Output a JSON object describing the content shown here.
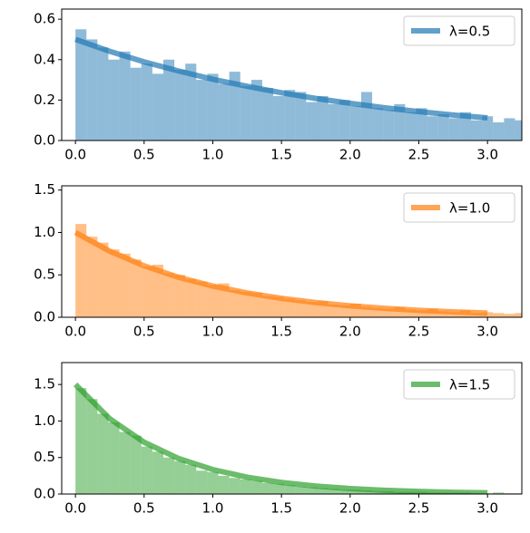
{
  "chart_data": [
    {
      "type": "histogram",
      "color": "#1f77b4",
      "bins": [
        0,
        0.08,
        0.16,
        0.24,
        0.32,
        0.4,
        0.48,
        0.56,
        0.64,
        0.72,
        0.8,
        0.88,
        0.96,
        1.04,
        1.12,
        1.2,
        1.28,
        1.36,
        1.44,
        1.52,
        1.6,
        1.68,
        1.76,
        1.84,
        1.92,
        2,
        2.08,
        2.16,
        2.24,
        2.32,
        2.4,
        2.48,
        2.56,
        2.64,
        2.72,
        2.8,
        2.88,
        2.96,
        3.04,
        3.12,
        3.2,
        3.28
      ],
      "values": [
        0.55,
        0.5,
        0.46,
        0.4,
        0.44,
        0.36,
        0.38,
        0.33,
        0.4,
        0.35,
        0.38,
        0.3,
        0.33,
        0.28,
        0.34,
        0.27,
        0.3,
        0.26,
        0.22,
        0.25,
        0.24,
        0.19,
        0.22,
        0.18,
        0.2,
        0.17,
        0.24,
        0.16,
        0.15,
        0.18,
        0.14,
        0.16,
        0.12,
        0.13,
        0.11,
        0.14,
        0.1,
        0.12,
        0.09,
        0.11,
        0.1
      ],
      "series": [
        {
          "name": "λ=0.5",
          "color": "#1f77b4",
          "x": [
            0,
            0.25,
            0.5,
            0.75,
            1,
            1.25,
            1.5,
            1.75,
            2,
            2.25,
            2.5,
            2.75,
            3
          ],
          "values": [
            0.5,
            0.441,
            0.389,
            0.344,
            0.303,
            0.268,
            0.236,
            0.208,
            0.184,
            0.162,
            0.143,
            0.126,
            0.112
          ]
        }
      ],
      "xlim": [
        -0.1,
        3.25
      ],
      "xticks": [
        {
          "value": 0,
          "label": "0.0"
        },
        {
          "value": 0.5,
          "label": "0.5"
        },
        {
          "value": 1,
          "label": "1.0"
        },
        {
          "value": 1.5,
          "label": "1.5"
        },
        {
          "value": 2,
          "label": "2.0"
        },
        {
          "value": 2.5,
          "label": "2.5"
        },
        {
          "value": 3,
          "label": "3.0"
        }
      ],
      "ylim": [
        0,
        0.65
      ],
      "yticks": [
        {
          "value": 0,
          "label": "0.0"
        },
        {
          "value": 0.2,
          "label": "0.2"
        },
        {
          "value": 0.4,
          "label": "0.4"
        },
        {
          "value": 0.6,
          "label": "0.6"
        }
      ],
      "legend": "upper right"
    },
    {
      "type": "histogram",
      "color": "#ff7f0e",
      "bins": [
        0,
        0.08,
        0.16,
        0.24,
        0.32,
        0.4,
        0.48,
        0.56,
        0.64,
        0.72,
        0.8,
        0.88,
        0.96,
        1.04,
        1.12,
        1.2,
        1.28,
        1.36,
        1.44,
        1.52,
        1.6,
        1.68,
        1.76,
        1.84,
        1.92,
        2,
        2.08,
        2.16,
        2.24,
        2.32,
        2.4,
        2.48,
        2.56,
        2.64,
        2.72,
        2.8,
        2.88,
        2.96,
        3.04,
        3.12,
        3.2,
        3.28
      ],
      "values": [
        1.1,
        0.95,
        0.88,
        0.8,
        0.75,
        0.68,
        0.6,
        0.62,
        0.52,
        0.5,
        0.45,
        0.42,
        0.38,
        0.4,
        0.32,
        0.3,
        0.29,
        0.25,
        0.24,
        0.22,
        0.2,
        0.18,
        0.19,
        0.15,
        0.14,
        0.16,
        0.12,
        0.11,
        0.1,
        0.12,
        0.09,
        0.08,
        0.1,
        0.07,
        0.06,
        0.08,
        0.05,
        0.06,
        0.05,
        0.04,
        0.05
      ],
      "series": [
        {
          "name": "λ=1.0",
          "color": "#ff7f0e",
          "x": [
            0,
            0.25,
            0.5,
            0.75,
            1,
            1.25,
            1.5,
            1.75,
            2,
            2.25,
            2.5,
            2.75,
            3
          ],
          "values": [
            1,
            0.779,
            0.607,
            0.472,
            0.368,
            0.287,
            0.223,
            0.174,
            0.135,
            0.105,
            0.082,
            0.064,
            0.05
          ]
        }
      ],
      "xlim": [
        -0.1,
        3.25
      ],
      "xticks": [
        {
          "value": 0,
          "label": "0.0"
        },
        {
          "value": 0.5,
          "label": "0.5"
        },
        {
          "value": 1,
          "label": "1.0"
        },
        {
          "value": 1.5,
          "label": "1.5"
        },
        {
          "value": 2,
          "label": "2.0"
        },
        {
          "value": 2.5,
          "label": "2.5"
        },
        {
          "value": 3,
          "label": "3.0"
        }
      ],
      "ylim": [
        0,
        1.55
      ],
      "yticks": [
        {
          "value": 0,
          "label": "0.0"
        },
        {
          "value": 0.5,
          "label": "0.5"
        },
        {
          "value": 1,
          "label": "1.0"
        },
        {
          "value": 1.5,
          "label": "1.5"
        }
      ],
      "legend": "upper right"
    },
    {
      "type": "histogram",
      "color": "#2ca02c",
      "bins": [
        0,
        0.08,
        0.16,
        0.24,
        0.32,
        0.4,
        0.48,
        0.56,
        0.64,
        0.72,
        0.8,
        0.88,
        0.96,
        1.04,
        1.12,
        1.2,
        1.28,
        1.36,
        1.44,
        1.52,
        1.6,
        1.68,
        1.76,
        1.84,
        1.92,
        2,
        2.08,
        2.16,
        2.24,
        2.32,
        2.4,
        2.48,
        2.56,
        2.64,
        2.72,
        2.8,
        2.88,
        2.96,
        3.04,
        3.12,
        3.2,
        3.28
      ],
      "values": [
        1.45,
        1.3,
        1.1,
        0.98,
        0.85,
        0.8,
        0.65,
        0.58,
        0.5,
        0.45,
        0.4,
        0.32,
        0.3,
        0.25,
        0.22,
        0.2,
        0.18,
        0.15,
        0.14,
        0.12,
        0.1,
        0.09,
        0.08,
        0.07,
        0.06,
        0.06,
        0.05,
        0.04,
        0.04,
        0.03,
        0.03,
        0.03,
        0.02,
        0.02,
        0.02,
        0.02,
        0.01,
        0.01,
        0.02,
        0.01,
        0.01
      ],
      "series": [
        {
          "name": "λ=1.5",
          "color": "#2ca02c",
          "x": [
            0,
            0.25,
            0.5,
            0.75,
            1,
            1.25,
            1.5,
            1.75,
            2,
            2.25,
            2.5,
            2.75,
            3
          ],
          "values": [
            1.5,
            1.031,
            0.709,
            0.487,
            0.335,
            0.23,
            0.158,
            0.109,
            0.075,
            0.051,
            0.035,
            0.024,
            0.017
          ]
        }
      ],
      "xlim": [
        -0.1,
        3.25
      ],
      "xticks": [
        {
          "value": 0,
          "label": "0.0"
        },
        {
          "value": 0.5,
          "label": "0.5"
        },
        {
          "value": 1,
          "label": "1.0"
        },
        {
          "value": 1.5,
          "label": "1.5"
        },
        {
          "value": 2,
          "label": "2.0"
        },
        {
          "value": 2.5,
          "label": "2.5"
        },
        {
          "value": 3,
          "label": "3.0"
        }
      ],
      "ylim": [
        0,
        1.8
      ],
      "yticks": [
        {
          "value": 0,
          "label": "0.0"
        },
        {
          "value": 0.5,
          "label": "0.5"
        },
        {
          "value": 1,
          "label": "1.0"
        },
        {
          "value": 1.5,
          "label": "1.5"
        }
      ],
      "legend": "upper right"
    }
  ]
}
